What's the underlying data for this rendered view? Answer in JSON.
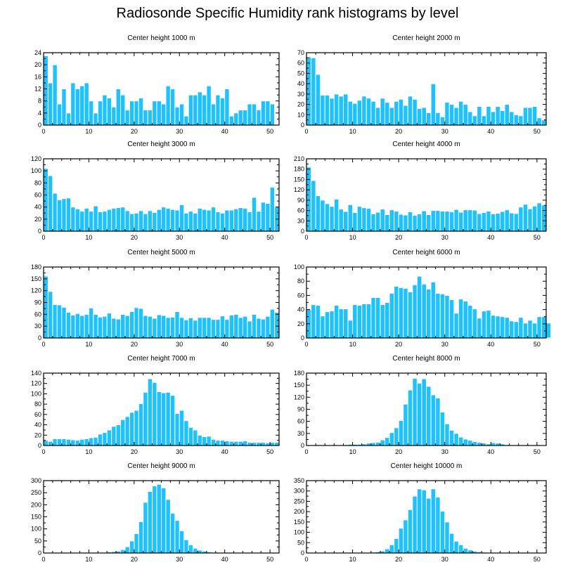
{
  "title": "Radiosonde Specific Humidity rank histograms by level",
  "colors": {
    "bar": "#1ec2ff",
    "bar_edge": "#ffffff",
    "axis": "#000000"
  },
  "chart_data": [
    {
      "type": "bar",
      "title": "Center height 1000 m",
      "xlim": [
        0,
        52
      ],
      "ylim": [
        0,
        24
      ],
      "xticks": [
        0,
        10,
        20,
        30,
        40,
        50
      ],
      "yticks": [
        0,
        4,
        8,
        12,
        16,
        20,
        24
      ],
      "values": [
        23,
        14,
        20,
        7,
        12,
        4,
        14,
        12,
        13,
        14,
        8,
        4,
        8,
        10,
        9,
        6,
        12,
        10,
        5,
        8,
        8,
        9,
        5,
        5,
        8,
        8,
        7,
        13,
        12,
        6,
        7,
        3,
        10,
        10,
        11,
        10,
        13,
        7,
        10,
        9,
        12,
        3,
        4,
        5,
        5,
        7,
        7,
        5,
        8,
        8,
        7
      ]
    },
    {
      "type": "bar",
      "title": "Center height 2000 m",
      "xlim": [
        0,
        52
      ],
      "ylim": [
        0,
        70
      ],
      "xticks": [
        0,
        10,
        20,
        30,
        40,
        50
      ],
      "yticks": [
        0,
        10,
        20,
        30,
        40,
        50,
        60,
        70
      ],
      "values": [
        66,
        65,
        49,
        29,
        29,
        26,
        30,
        28,
        30,
        23,
        21,
        24,
        28,
        26,
        23,
        17,
        26,
        22,
        17,
        23,
        25,
        19,
        28,
        25,
        16,
        17,
        12,
        40,
        12,
        8,
        22,
        20,
        17,
        23,
        20,
        13,
        9,
        18,
        9,
        18,
        13,
        18,
        14,
        20,
        13,
        10,
        9,
        17,
        17,
        18,
        7,
        5
      ]
    },
    {
      "type": "bar",
      "title": "Center height 3000 m",
      "xlim": [
        0,
        52
      ],
      "ylim": [
        0,
        120
      ],
      "xticks": [
        0,
        10,
        20,
        30,
        40,
        50
      ],
      "yticks": [
        0,
        20,
        40,
        60,
        80,
        100,
        120
      ],
      "values": [
        104,
        92,
        63,
        52,
        54,
        55,
        40,
        37,
        33,
        38,
        33,
        42,
        32,
        33,
        36,
        38,
        39,
        40,
        34,
        29,
        30,
        34,
        29,
        34,
        31,
        36,
        40,
        38,
        36,
        35,
        44,
        30,
        33,
        30,
        38,
        36,
        35,
        40,
        32,
        30,
        35,
        35,
        37,
        39,
        38,
        32,
        56,
        33,
        48,
        46,
        73,
        40
      ]
    },
    {
      "type": "bar",
      "title": "Center height 4000 m",
      "xlim": [
        0,
        52
      ],
      "ylim": [
        0,
        210
      ],
      "xticks": [
        0,
        10,
        20,
        30,
        40,
        50
      ],
      "yticks": [
        0,
        30,
        60,
        90,
        120,
        150,
        180,
        210
      ],
      "values": [
        186,
        147,
        103,
        90,
        80,
        72,
        93,
        64,
        57,
        77,
        54,
        72,
        68,
        66,
        50,
        55,
        64,
        48,
        62,
        58,
        49,
        47,
        56,
        46,
        50,
        59,
        48,
        60,
        60,
        58,
        58,
        56,
        63,
        55,
        62,
        62,
        61,
        51,
        54,
        58,
        50,
        52,
        57,
        62,
        53,
        51,
        70,
        78,
        65,
        73,
        82,
        76
      ]
    },
    {
      "type": "bar",
      "title": "Center height 5000 m",
      "xlim": [
        0,
        52
      ],
      "ylim": [
        0,
        180
      ],
      "xticks": [
        0,
        10,
        20,
        30,
        40,
        50
      ],
      "yticks": [
        0,
        30,
        60,
        90,
        120,
        150,
        180
      ],
      "values": [
        157,
        118,
        85,
        84,
        78,
        65,
        58,
        62,
        57,
        60,
        76,
        60,
        53,
        55,
        63,
        50,
        48,
        60,
        57,
        67,
        77,
        75,
        57,
        55,
        50,
        59,
        57,
        52,
        53,
        67,
        52,
        46,
        51,
        45,
        52,
        52,
        52,
        47,
        47,
        56,
        47,
        58,
        60,
        52,
        55,
        43,
        60,
        50,
        48,
        55,
        73,
        65
      ]
    },
    {
      "type": "bar",
      "title": "Center height 6000 m",
      "xlim": [
        0,
        52
      ],
      "ylim": [
        0,
        100
      ],
      "xticks": [
        0,
        10,
        20,
        30,
        40,
        50
      ],
      "yticks": [
        0,
        20,
        40,
        60,
        80,
        100
      ],
      "values": [
        40,
        47,
        46,
        31,
        37,
        38,
        46,
        41,
        41,
        25,
        47,
        46,
        48,
        48,
        57,
        57,
        47,
        50,
        63,
        73,
        71,
        70,
        65,
        75,
        87,
        76,
        69,
        79,
        63,
        62,
        60,
        54,
        35,
        55,
        52,
        46,
        41,
        28,
        38,
        39,
        32,
        31,
        30,
        29,
        24,
        23,
        29,
        21,
        25,
        21,
        30,
        30,
        21
      ]
    },
    {
      "type": "bar",
      "title": "Center height 7000 m",
      "xlim": [
        0,
        52
      ],
      "ylim": [
        0,
        140
      ],
      "xticks": [
        0,
        10,
        20,
        30,
        40,
        50
      ],
      "yticks": [
        0,
        20,
        40,
        60,
        80,
        100,
        120,
        140
      ],
      "values": [
        10,
        8,
        13,
        13,
        13,
        12,
        11,
        10,
        12,
        13,
        15,
        16,
        22,
        25,
        30,
        37,
        40,
        50,
        56,
        64,
        68,
        81,
        103,
        129,
        122,
        104,
        102,
        103,
        97,
        62,
        68,
        48,
        35,
        30,
        20,
        17,
        18,
        12,
        10,
        10,
        9,
        8,
        8,
        8,
        9,
        6,
        6,
        6,
        6,
        5,
        6,
        6
      ]
    },
    {
      "type": "bar",
      "title": "Center height 8000 m",
      "xlim": [
        0,
        52
      ],
      "ylim": [
        0,
        180
      ],
      "xticks": [
        0,
        10,
        20,
        30,
        40,
        50
      ],
      "yticks": [
        0,
        30,
        60,
        90,
        120,
        150,
        180
      ],
      "values": [
        0,
        0,
        0,
        0,
        0,
        0,
        1,
        1,
        2,
        3,
        3,
        3,
        4,
        6,
        7,
        8,
        14,
        20,
        32,
        44,
        62,
        103,
        138,
        167,
        155,
        166,
        147,
        126,
        118,
        83,
        54,
        38,
        30,
        21,
        16,
        13,
        10,
        8,
        6,
        4,
        7,
        6,
        4,
        2,
        1,
        1,
        0,
        0,
        0,
        0,
        0,
        0
      ]
    },
    {
      "type": "bar",
      "title": "Center height 9000 m",
      "xlim": [
        0,
        52
      ],
      "ylim": [
        0,
        300
      ],
      "xticks": [
        0,
        10,
        20,
        30,
        40,
        50
      ],
      "yticks": [
        0,
        50,
        100,
        150,
        200,
        250,
        300
      ],
      "values": [
        0,
        0,
        0,
        0,
        0,
        0,
        0,
        0,
        0,
        0,
        0,
        1,
        1,
        2,
        4,
        6,
        8,
        14,
        26,
        50,
        80,
        130,
        210,
        255,
        278,
        285,
        270,
        222,
        165,
        135,
        92,
        55,
        34,
        20,
        12,
        8,
        5,
        3,
        2,
        1,
        1,
        1,
        0,
        0,
        0,
        0,
        0,
        0,
        0,
        0,
        0,
        0
      ]
    },
    {
      "type": "bar",
      "title": "Center height 10000 m",
      "xlim": [
        0,
        52
      ],
      "ylim": [
        0,
        350
      ],
      "xticks": [
        0,
        10,
        20,
        30,
        40,
        50
      ],
      "yticks": [
        0,
        50,
        100,
        150,
        200,
        250,
        300,
        350
      ],
      "values": [
        0,
        0,
        0,
        0,
        0,
        0,
        0,
        0,
        0,
        0,
        0,
        1,
        2,
        3,
        4,
        6,
        10,
        20,
        40,
        70,
        120,
        160,
        210,
        275,
        310,
        305,
        265,
        310,
        270,
        202,
        150,
        95,
        57,
        40,
        23,
        15,
        9,
        6,
        4,
        3,
        2,
        1,
        1,
        1,
        0,
        0,
        0,
        0,
        0,
        0,
        0,
        0
      ]
    }
  ]
}
